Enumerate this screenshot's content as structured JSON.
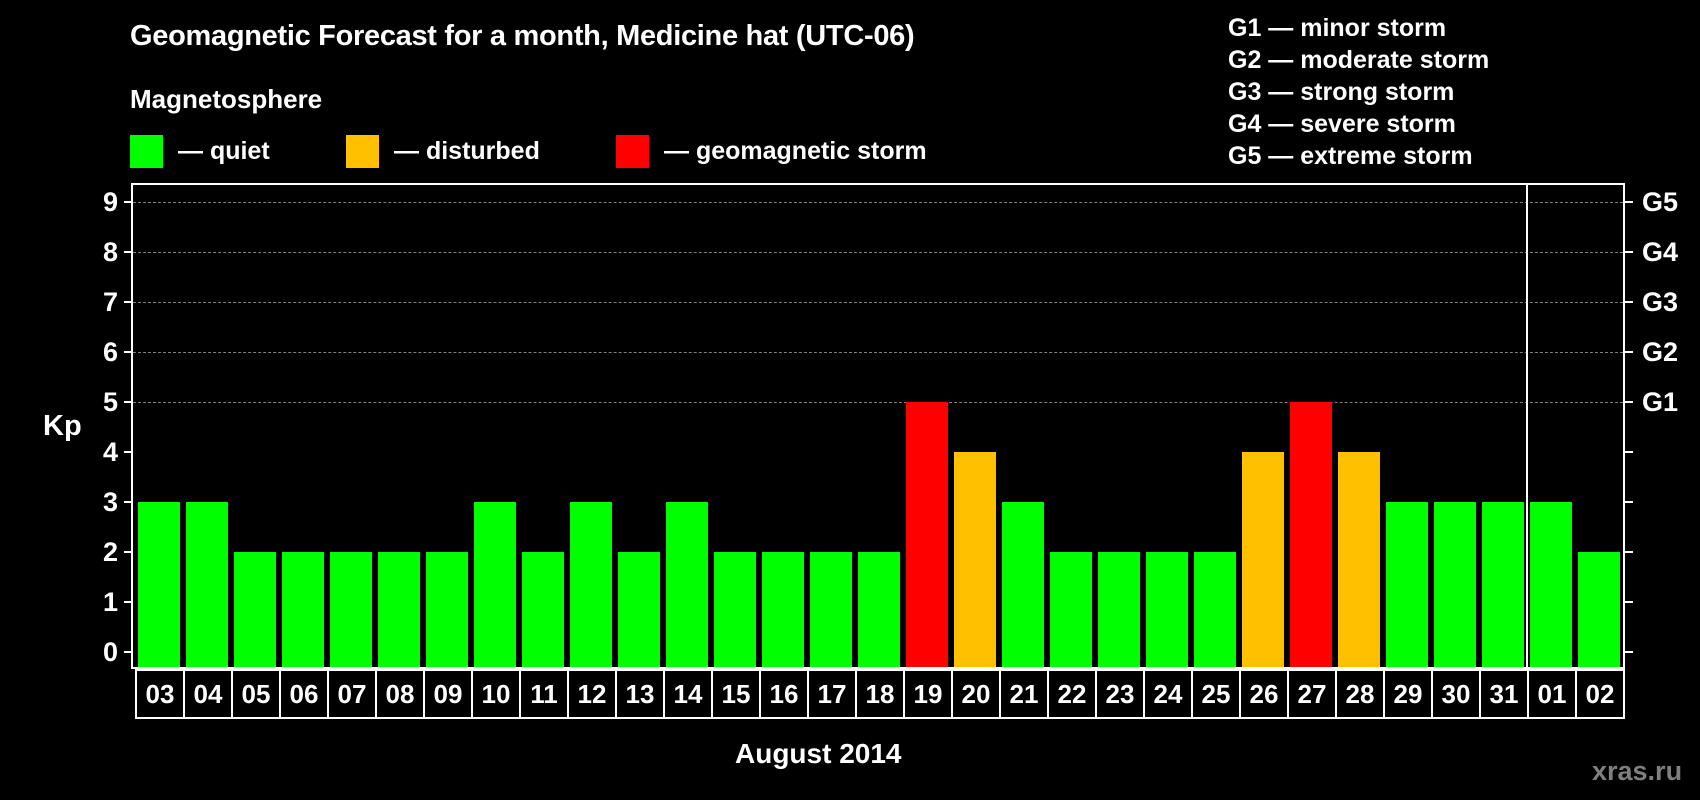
{
  "title": "Geomagnetic Forecast for a month, Medicine hat (UTC-06)",
  "subtitle": "Magnetosphere",
  "legend": [
    {
      "label": "— quiet",
      "color": "#00ff00"
    },
    {
      "label": "— disturbed",
      "color": "#ffc000"
    },
    {
      "label": "— geomagnetic storm",
      "color": "#ff0000"
    }
  ],
  "g_legend": [
    "G1 — minor storm",
    "G2 — moderate storm",
    "G3 — strong storm",
    "G4 — severe storm",
    "G5 — extreme storm"
  ],
  "y_axis_label": "Kp",
  "y_ticks": [
    "0",
    "1",
    "2",
    "3",
    "4",
    "5",
    "6",
    "7",
    "8",
    "9"
  ],
  "g_ticks": [
    {
      "label": "G1",
      "kp": 5
    },
    {
      "label": "G2",
      "kp": 6
    },
    {
      "label": "G3",
      "kp": 7
    },
    {
      "label": "G4",
      "kp": 8
    },
    {
      "label": "G5",
      "kp": 9
    }
  ],
  "x_axis_label": "August 2014",
  "watermark": "xras.ru",
  "colors": {
    "quiet": "#00ff00",
    "disturbed": "#ffc000",
    "storm": "#ff0000",
    "grid": "#808080"
  },
  "chart_data": {
    "type": "bar",
    "title": "Geomagnetic Forecast for a month, Medicine hat (UTC-06)",
    "xlabel": "August 2014",
    "ylabel": "Kp",
    "ylim": [
      0,
      9
    ],
    "grid": "horizontal dashed at Kp 5-9",
    "secondary_y_labels": {
      "5": "G1",
      "6": "G2",
      "7": "G3",
      "8": "G4",
      "9": "G5"
    },
    "categories": [
      "03",
      "04",
      "05",
      "06",
      "07",
      "08",
      "09",
      "10",
      "11",
      "12",
      "13",
      "14",
      "15",
      "16",
      "17",
      "18",
      "19",
      "20",
      "21",
      "22",
      "23",
      "24",
      "25",
      "26",
      "27",
      "28",
      "29",
      "30",
      "31",
      "01",
      "02"
    ],
    "values": [
      3,
      3,
      2,
      2,
      2,
      2,
      2,
      3,
      2,
      3,
      2,
      3,
      2,
      2,
      2,
      2,
      5,
      4,
      3,
      2,
      2,
      2,
      2,
      4,
      5,
      4,
      3,
      3,
      3,
      3,
      2
    ],
    "status": [
      "quiet",
      "quiet",
      "quiet",
      "quiet",
      "quiet",
      "quiet",
      "quiet",
      "quiet",
      "quiet",
      "quiet",
      "quiet",
      "quiet",
      "quiet",
      "quiet",
      "quiet",
      "quiet",
      "storm",
      "disturbed",
      "quiet",
      "quiet",
      "quiet",
      "quiet",
      "quiet",
      "disturbed",
      "storm",
      "disturbed",
      "quiet",
      "quiet",
      "quiet",
      "quiet",
      "quiet"
    ],
    "month_separator_after": "31",
    "legend": [
      "quiet",
      "disturbed",
      "geomagnetic storm"
    ]
  }
}
